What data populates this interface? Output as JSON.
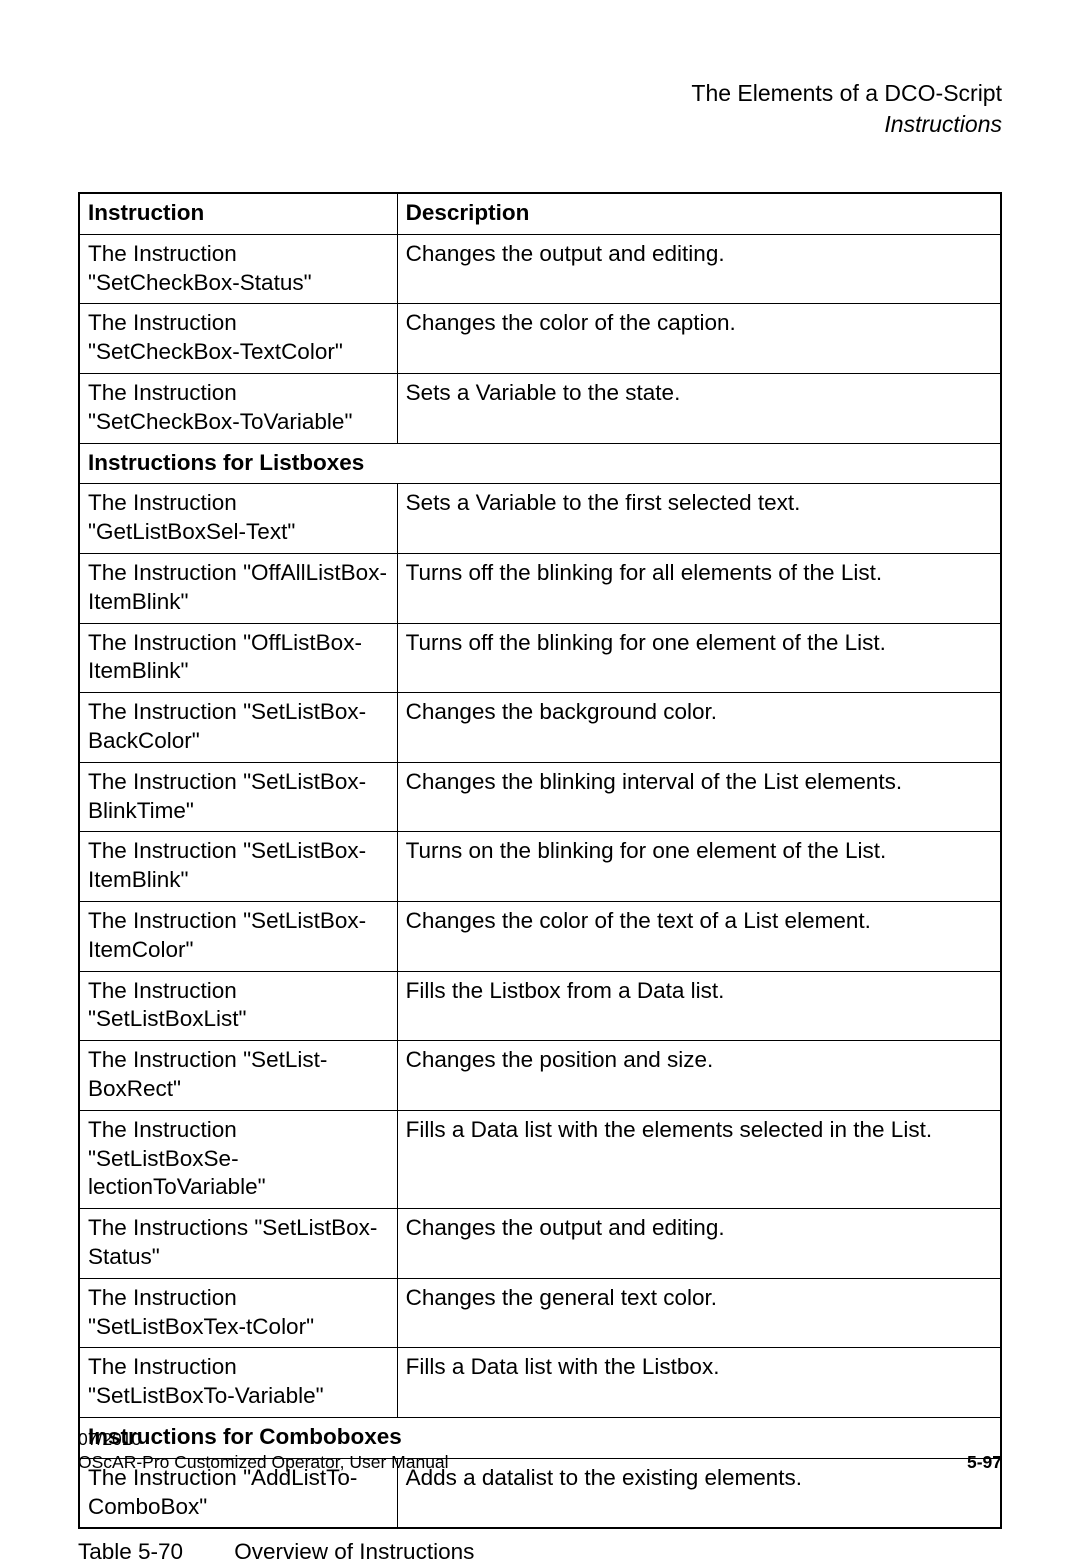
{
  "header": {
    "title": "The Elements of a DCO-Script",
    "subtitle": "Instructions"
  },
  "table": {
    "columns": [
      "Instruction",
      "Description"
    ],
    "rows": [
      {
        "type": "row",
        "instruction": "The Instruction \"SetCheckBox-Status\"",
        "description": "Changes the output and editing."
      },
      {
        "type": "row",
        "instruction": "The Instruction \"SetCheckBox-TextColor\"",
        "description": "Changes the color of the caption."
      },
      {
        "type": "row",
        "instruction": "The Instruction \"SetCheckBox-ToVariable\"",
        "description": "Sets a Variable to the state."
      },
      {
        "type": "section",
        "label": "Instructions for Listboxes"
      },
      {
        "type": "row",
        "instruction": "The Instruction \"GetListBoxSel-Text\"",
        "description": "Sets a Variable to the first selected text."
      },
      {
        "type": "row",
        "instruction": "The Instruction \"OffAllListBox-ItemBlink\"",
        "description": "Turns off the blinking for all elements of the List."
      },
      {
        "type": "row",
        "instruction": "The Instruction \"OffListBox-ItemBlink\"",
        "description": "Turns off the blinking for one element of the List."
      },
      {
        "type": "row",
        "instruction": "The Instruction \"SetListBox-BackColor\"",
        "description": "Changes the background color."
      },
      {
        "type": "row",
        "instruction": "The Instruction \"SetListBox-BlinkTime\"",
        "description": "Changes the blinking interval of the List elements."
      },
      {
        "type": "row",
        "instruction": "The Instruction \"SetListBox-ItemBlink\"",
        "description": "Turns on the blinking for one element of the List."
      },
      {
        "type": "row",
        "instruction": "The Instruction \"SetListBox-ItemColor\"",
        "description": "Changes the color of the text of a List element."
      },
      {
        "type": "row",
        "instruction": "The Instruction \"SetListBoxList\"",
        "description": "Fills the Listbox from a Data list."
      },
      {
        "type": "row",
        "instruction": "The Instruction \"SetList-BoxRect\"",
        "description": "Changes the position and size."
      },
      {
        "type": "row",
        "instruction": "The Instruction \"SetListBoxSe-lectionToVariable\"",
        "description": "Fills a Data list with the elements selected in the List."
      },
      {
        "type": "row",
        "instruction": "The Instructions \"SetListBox-Status\"",
        "description": "Changes the output and editing."
      },
      {
        "type": "row",
        "instruction": "The Instruction \"SetListBoxTex-tColor\"",
        "description": "Changes the general text color."
      },
      {
        "type": "row",
        "instruction": "The Instruction \"SetListBoxTo-Variable\"",
        "description": "Fills a Data list with the Listbox."
      },
      {
        "type": "section",
        "label": "Instructions for Comboboxes"
      },
      {
        "type": "row",
        "instruction": "The Instruction \"AddListTo-ComboBox\"",
        "description": "Adds a datalist to the existing elements."
      }
    ]
  },
  "caption": {
    "label": "Table 5-70",
    "text": "Overview of Instructions"
  },
  "footer": {
    "date": "07/2010",
    "doc": "OScAR-Pro Customized Operator, User Manual",
    "page": "5-97"
  }
}
